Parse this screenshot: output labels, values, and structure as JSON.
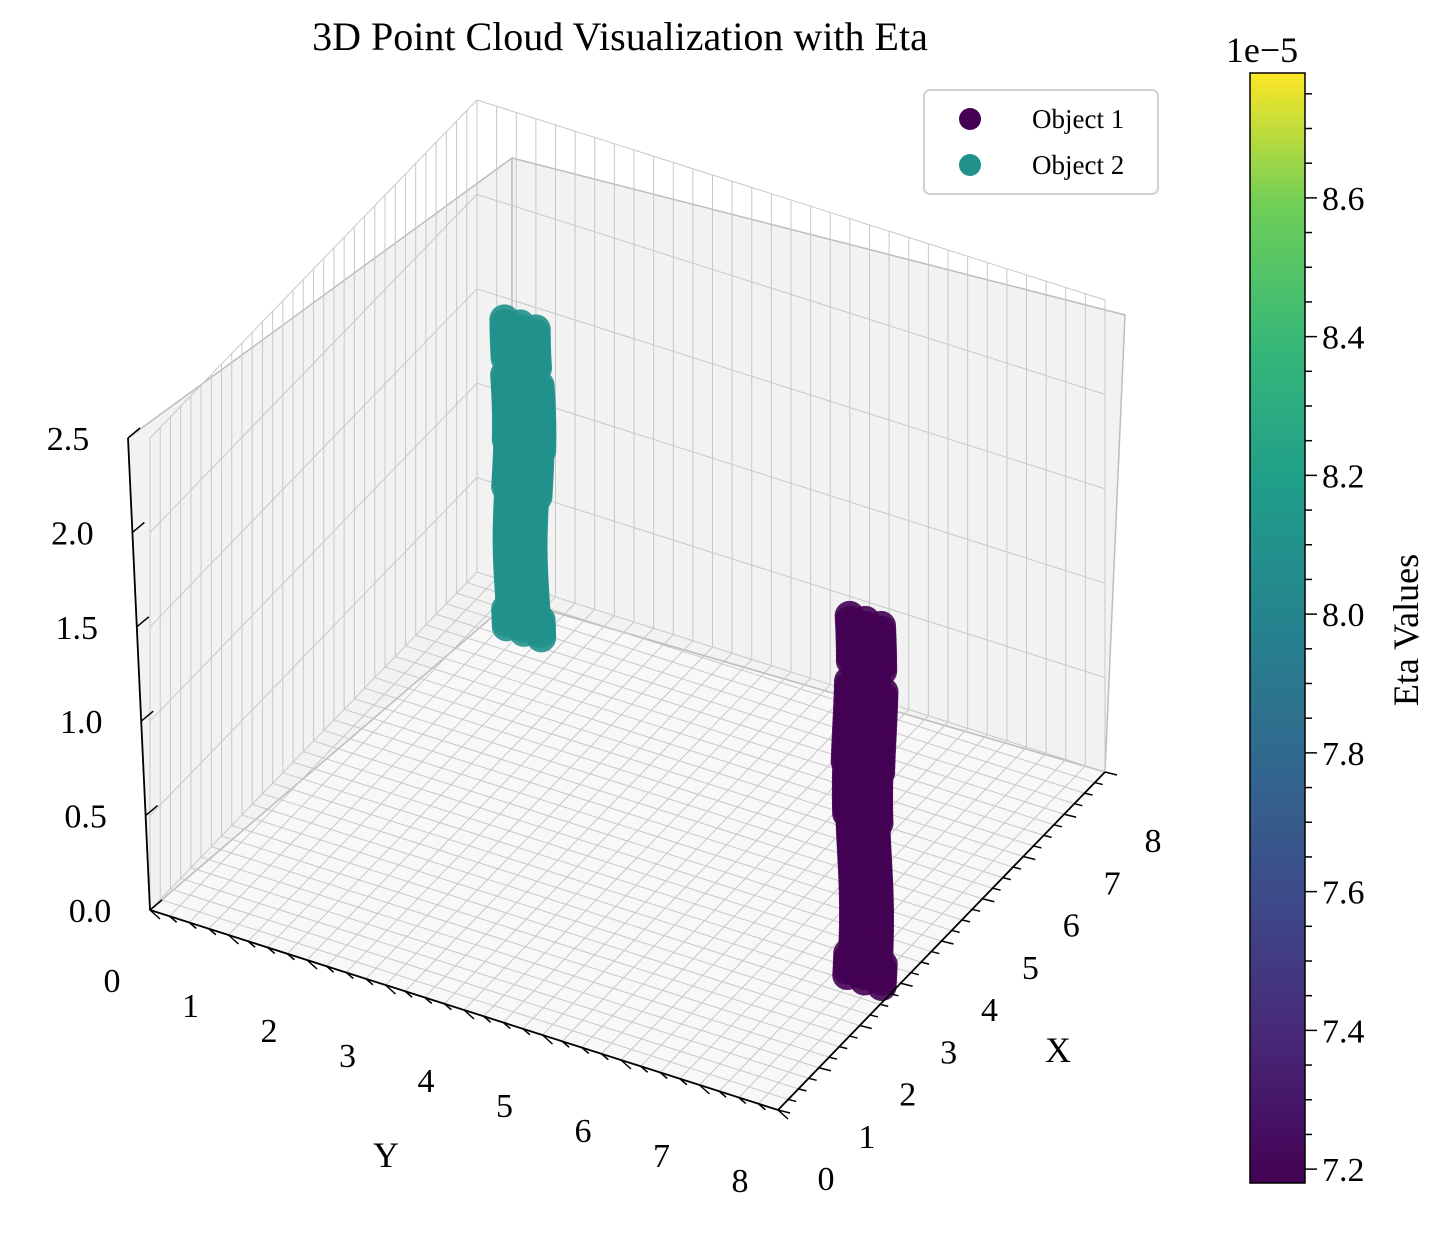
{
  "chart_data": {
    "type": "scatter",
    "projection": "3d",
    "title": "3D Point Cloud Visualization with Eta",
    "xlabel": "X",
    "ylabel": "Y",
    "zlabel": "",
    "xlim": [
      0,
      8
    ],
    "ylim": [
      0,
      8
    ],
    "zlim": [
      0,
      2.5
    ],
    "x_ticks": [
      "0",
      "1",
      "2",
      "3",
      "4",
      "5",
      "6",
      "7",
      "8"
    ],
    "y_ticks": [
      "0",
      "1",
      "2",
      "3",
      "4",
      "5",
      "6",
      "7",
      "8"
    ],
    "z_ticks": [
      "0.0",
      "0.5",
      "1.0",
      "1.5",
      "2.0",
      "2.5"
    ],
    "grid": true,
    "legend_position": "top-right",
    "series": [
      {
        "name": "Object 1",
        "color": "#440154",
        "eta": 7.18e-05,
        "x_center": 2.5,
        "y_center": 7.8,
        "z_range": [
          0.1,
          2.0
        ]
      },
      {
        "name": "Object 2",
        "color": "#21918c",
        "eta": 8e-05,
        "x_center": 6.8,
        "y_center": 1.2,
        "z_range": [
          0.1,
          1.75
        ]
      }
    ],
    "colorbar": {
      "label": "Eta Values",
      "offset_text": "1e−5",
      "min": 7.18,
      "max": 8.78,
      "ticks": [
        "7.2",
        "7.4",
        "7.6",
        "7.8",
        "8.0",
        "8.2",
        "8.4",
        "8.6"
      ],
      "colormap": "viridis"
    }
  }
}
